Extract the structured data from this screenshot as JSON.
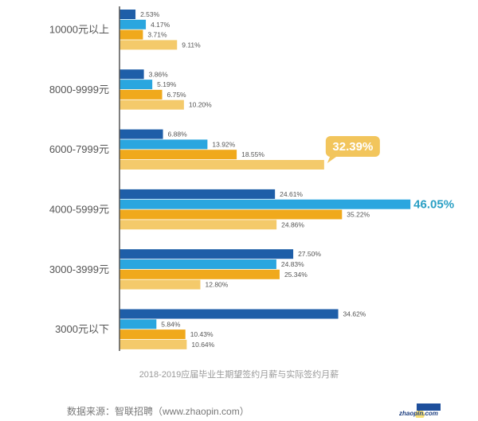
{
  "chart_data": {
    "type": "bar",
    "orientation": "horizontal",
    "title": "2018-2019应届毕业生期望签约月薪与实际签约月薪",
    "categories": [
      "10000元以上",
      "8000-9999元",
      "6000-7999元",
      "4000-5999元",
      "3000-3999元",
      "3000元以下"
    ],
    "series": [
      {
        "color": "#1e5ea8",
        "values": [
          2.53,
          3.86,
          6.88,
          24.61,
          27.5,
          34.62
        ]
      },
      {
        "color": "#2aa6df",
        "values": [
          4.17,
          5.19,
          13.92,
          46.05,
          24.83,
          5.84
        ]
      },
      {
        "color": "#f0a91c",
        "values": [
          3.71,
          6.75,
          18.55,
          35.22,
          25.34,
          10.43
        ]
      },
      {
        "color": "#f4ca6b",
        "values": [
          9.11,
          10.2,
          32.39,
          24.86,
          12.8,
          10.64
        ]
      }
    ],
    "labels": [
      [
        "2.53%",
        "4.17%",
        "3.71%",
        "9.11%"
      ],
      [
        "3.86%",
        "5.19%",
        "6.75%",
        "10.20%"
      ],
      [
        "6.88%",
        "13.92%",
        "18.55%",
        "32.39%"
      ],
      [
        "24.61%",
        "46.05%",
        "35.22%",
        "24.86%"
      ],
      [
        "27.50%",
        "24.83%",
        "25.34%",
        "12.80%"
      ],
      [
        "34.62%",
        "5.84%",
        "10.43%",
        "10.64%"
      ]
    ],
    "highlights": [
      {
        "category": "6000-7999元",
        "series_index": 3,
        "style": "callout-bubble",
        "color": "#f2c55c"
      },
      {
        "category": "4000-5999元",
        "series_index": 1,
        "style": "bold-text",
        "color": "#2a9fc4"
      }
    ],
    "xlim": [
      0,
      50
    ],
    "grid": false,
    "legend": "none",
    "value_axis_shown": false
  },
  "source": "数据来源：智联招聘（www.zhaopin.com）",
  "logo": {
    "text": "智联招聘 zhaopin.com"
  }
}
